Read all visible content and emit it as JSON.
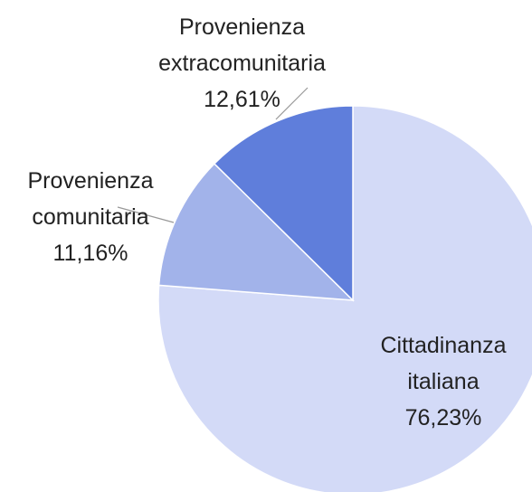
{
  "chart_data": {
    "type": "pie",
    "categories": [
      "Cittadinanza italiana",
      "Provenienza comunitaria",
      "Provenienza extracomunitaria"
    ],
    "values": [
      76.23,
      11.16,
      12.61
    ],
    "value_labels": [
      "76,23%",
      "11,16%",
      "12,61%"
    ],
    "colors": [
      "#d3daf7",
      "#a2b3ea",
      "#5f7edb"
    ]
  }
}
